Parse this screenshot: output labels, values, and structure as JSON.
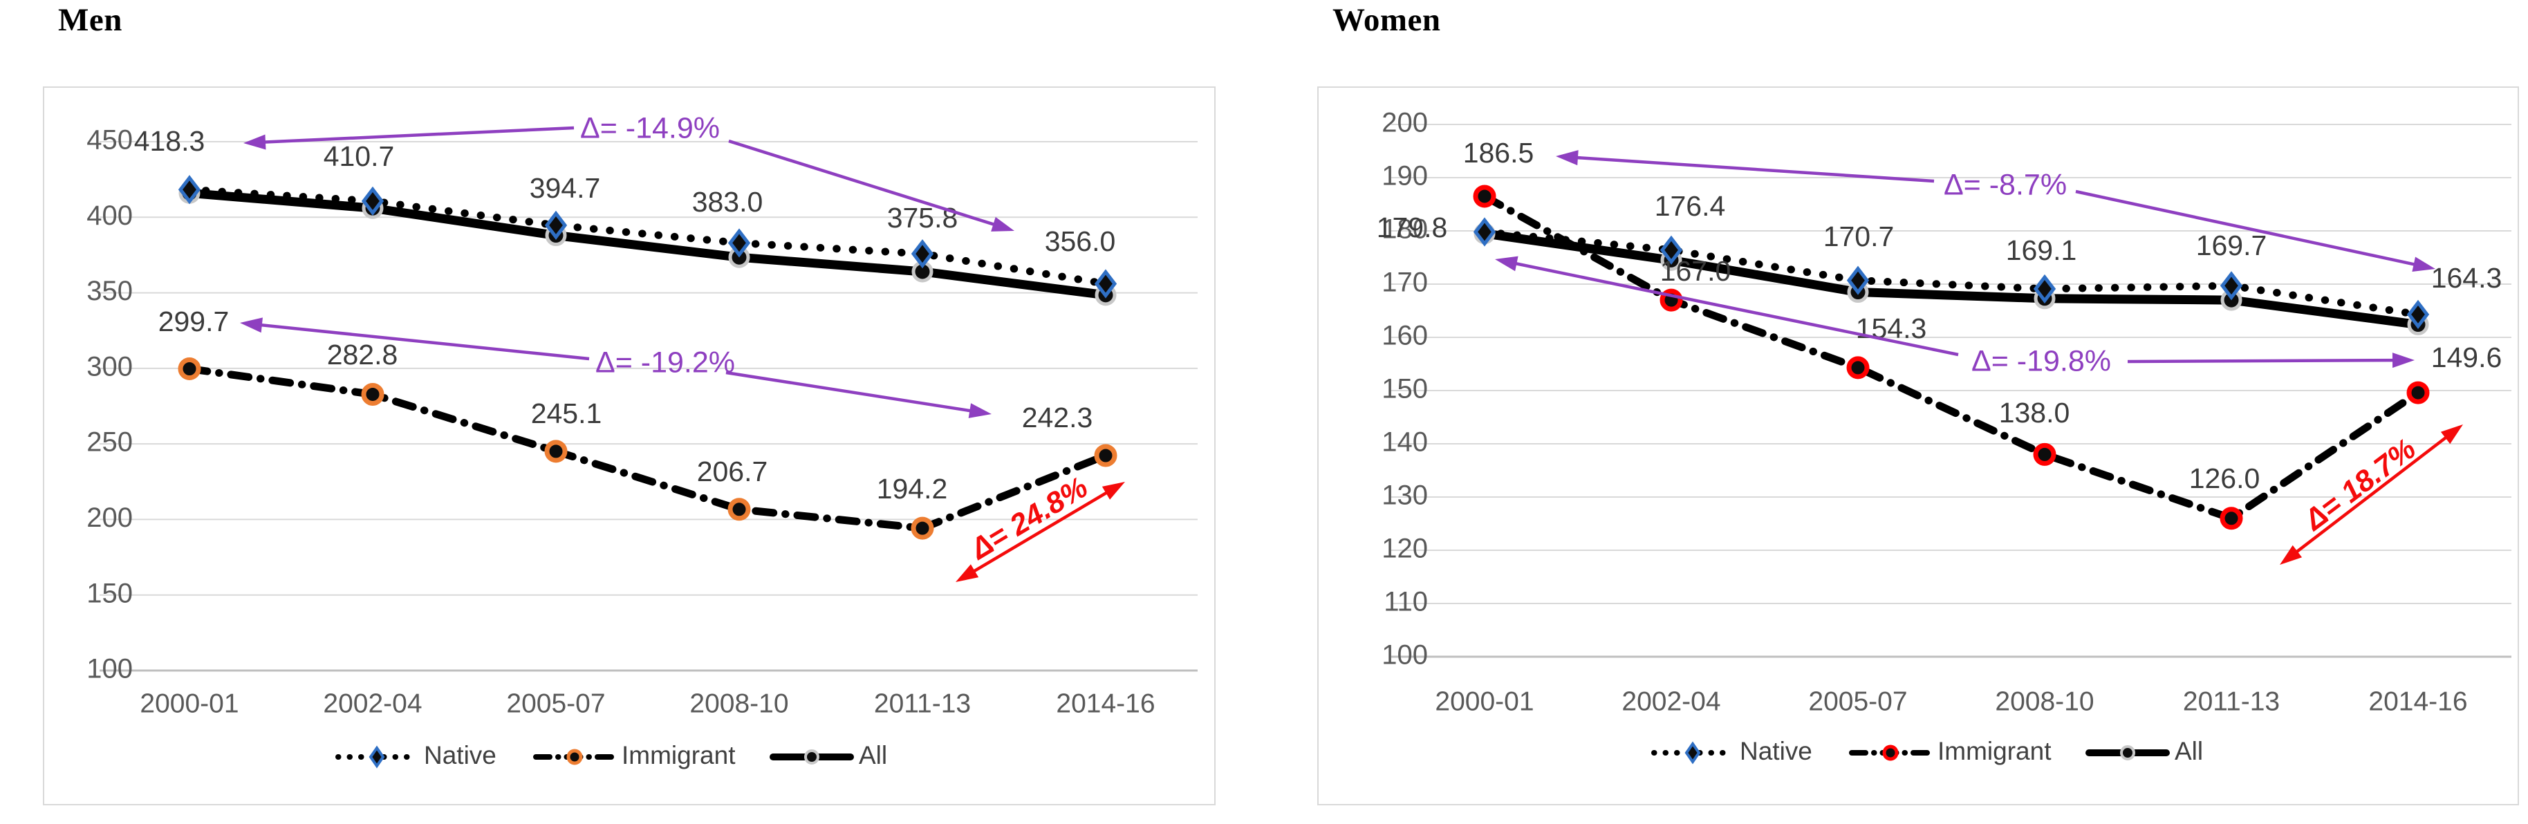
{
  "figure": {
    "background": "#ffffff",
    "grid_color": "#d9d9d9",
    "axis_line_color": "#bfbfbf",
    "tick_label_color": "#595959",
    "data_label_color": "#3b3b3b",
    "annotation_purple": "#8e3fc0",
    "annotation_red": "#f40b0b"
  },
  "chart_data": [
    {
      "type": "line",
      "title": "Men",
      "categories": [
        "2000-01",
        "2002-04",
        "2005-07",
        "2008-10",
        "2011-13",
        "2014-16"
      ],
      "y_axis": {
        "min": 100,
        "max": 450,
        "step": 50,
        "ticks": [
          "450",
          "400",
          "350",
          "300",
          "250",
          "200",
          "150",
          "100"
        ],
        "grid": true
      },
      "legend_position": "bottom",
      "series": [
        {
          "name": "Native",
          "line_style": "dotted",
          "line_color": "#000000",
          "marker": "diamond",
          "marker_color": "#2f6fc4",
          "values": [
            418.3,
            410.7,
            394.7,
            383.0,
            375.8,
            356.0
          ],
          "labels": [
            "418.3",
            "410.7",
            "394.7",
            "383.0",
            "375.8",
            "356.0"
          ]
        },
        {
          "name": "Immigrant",
          "line_style": "dashdot",
          "line_color": "#000000",
          "marker": "circle",
          "marker_color": "#ed7d31",
          "values": [
            299.7,
            282.8,
            245.1,
            206.7,
            194.2,
            242.3
          ],
          "labels": [
            "299.7",
            "282.8",
            "245.1",
            "206.7",
            "194.2",
            "242.3"
          ]
        },
        {
          "name": "All",
          "line_style": "solid",
          "line_color": "#000000",
          "marker": "circle",
          "marker_color": "#c8c8c8",
          "values": [
            416.0,
            406.0,
            388.0,
            373.5,
            364.0,
            348.5
          ],
          "estimated": true,
          "labels": null
        }
      ],
      "annotations": [
        {
          "id": "native-change",
          "text": "Δ= -14.9%",
          "color": "#8e3fc0",
          "italic": false
        },
        {
          "id": "immigrant-change",
          "text": "Δ= -19.2%",
          "color": "#8e3fc0",
          "italic": false
        },
        {
          "id": "immigrant-rebound",
          "text": "Δ= 24.8%",
          "color": "#f40b0b",
          "italic": true
        }
      ],
      "legend": [
        "Native",
        "Immigrant",
        "All"
      ]
    },
    {
      "type": "line",
      "title": "Women",
      "categories": [
        "2000-01",
        "2002-04",
        "2005-07",
        "2008-10",
        "2011-13",
        "2014-16"
      ],
      "y_axis": {
        "min": 100,
        "max": 200,
        "step": 10,
        "ticks": [
          "200",
          "190",
          "180",
          "170",
          "160",
          "150",
          "140",
          "130",
          "120",
          "110",
          "100"
        ],
        "grid": true
      },
      "legend_position": "bottom",
      "series": [
        {
          "name": "Native",
          "line_style": "dotted",
          "line_color": "#000000",
          "marker": "diamond",
          "marker_color": "#2f6fc4",
          "values": [
            179.8,
            176.4,
            170.7,
            169.1,
            169.7,
            164.3
          ],
          "labels": [
            "179.8",
            "176.4",
            "170.7",
            "169.1",
            "169.7",
            "164.3"
          ]
        },
        {
          "name": "Immigrant",
          "line_style": "dashdot",
          "line_color": "#000000",
          "marker": "circle",
          "marker_color": "#ff0000",
          "values": [
            186.5,
            167.0,
            154.3,
            138.0,
            126.0,
            149.6
          ],
          "labels": [
            "186.5",
            "167.0",
            "154.3",
            "138.0",
            "126.0",
            "149.6"
          ]
        },
        {
          "name": "All",
          "line_style": "solid",
          "line_color": "#000000",
          "marker": "circle",
          "marker_color": "#c8c8c8",
          "values": [
            179.5,
            174.5,
            168.5,
            167.3,
            167.0,
            162.4
          ],
          "estimated": true,
          "labels": null
        }
      ],
      "annotations": [
        {
          "id": "native-change",
          "text": "Δ= -8.7%",
          "color": "#8e3fc0",
          "italic": false
        },
        {
          "id": "immigrant-change",
          "text": "Δ= -19.8%",
          "color": "#8e3fc0",
          "italic": false
        },
        {
          "id": "immigrant-rebound",
          "text": "Δ= 18.7%",
          "color": "#f40b0b",
          "italic": true
        }
      ],
      "legend": [
        "Native",
        "Immigrant",
        "All"
      ]
    }
  ]
}
